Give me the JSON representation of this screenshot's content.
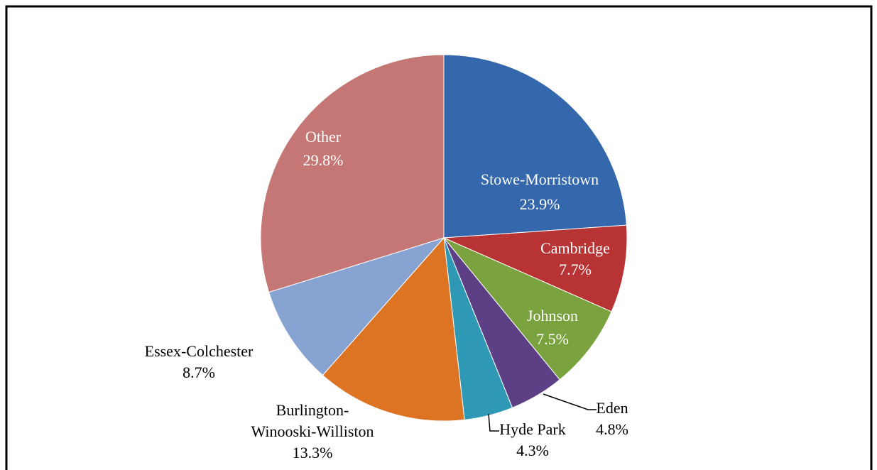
{
  "chart_data": {
    "type": "pie",
    "categories": [
      "Stowe-Morristown",
      "Cambridge",
      "Johnson",
      "Eden",
      "Hyde Park",
      "Burlington-Winooski-Williston",
      "Essex-Colchester",
      "Other"
    ],
    "values": [
      23.9,
      7.7,
      7.5,
      4.8,
      4.3,
      13.3,
      8.7,
      29.8
    ],
    "value_labels": [
      "23.9%",
      "7.7%",
      "7.5%",
      "4.8%",
      "4.3%",
      "13.3%",
      "8.7%",
      "29.8%"
    ],
    "colors": [
      "#3467ab",
      "#b83434",
      "#7aa33f",
      "#5c3f85",
      "#2f98b5",
      "#dc7424",
      "#86a3d2",
      "#c47774"
    ]
  }
}
